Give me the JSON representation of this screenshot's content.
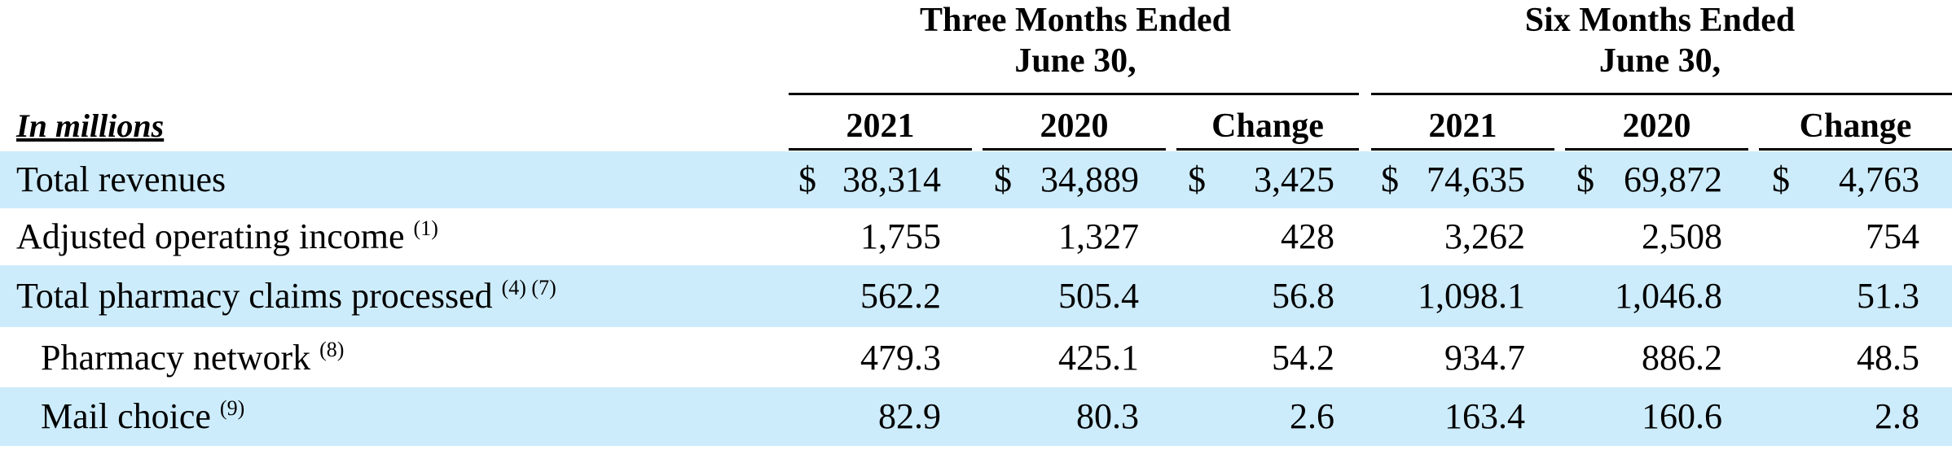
{
  "header": {
    "group_three": {
      "line1": "Three Months Ended",
      "line2": "June 30,"
    },
    "group_six": {
      "line1": "Six Months Ended",
      "line2": "June 30,"
    },
    "stub_label": "In millions",
    "columns": [
      "2021",
      "2020",
      "Change",
      "2021",
      "2020",
      "Change"
    ]
  },
  "rows": [
    {
      "label": "Total revenues",
      "notes": "",
      "shaded": true,
      "dollar": true,
      "values": [
        "38,314",
        "34,889",
        "3,425",
        "74,635",
        "69,872",
        "4,763"
      ]
    },
    {
      "label": "Adjusted operating income",
      "notes": "(1)",
      "shaded": false,
      "dollar": false,
      "values": [
        "1,755",
        "1,327",
        "428",
        "3,262",
        "2,508",
        "754"
      ]
    },
    {
      "label": "Total pharmacy claims processed",
      "notes": "(4) (7)",
      "shaded": true,
      "dollar": false,
      "values": [
        "562.2",
        "505.4",
        "56.8",
        "1,098.1",
        "1,046.8",
        "51.3"
      ]
    },
    {
      "label": "Pharmacy network",
      "notes": "(8)",
      "shaded": false,
      "dollar": false,
      "indent": true,
      "values": [
        "479.3",
        "425.1",
        "54.2",
        "934.7",
        "886.2",
        "48.5"
      ]
    },
    {
      "label": "Mail choice",
      "notes": "(9)",
      "shaded": true,
      "dollar": false,
      "indent": true,
      "values": [
        "82.9",
        "80.3",
        "2.6",
        "163.4",
        "160.6",
        "2.8"
      ]
    }
  ],
  "currency_symbol": "$"
}
